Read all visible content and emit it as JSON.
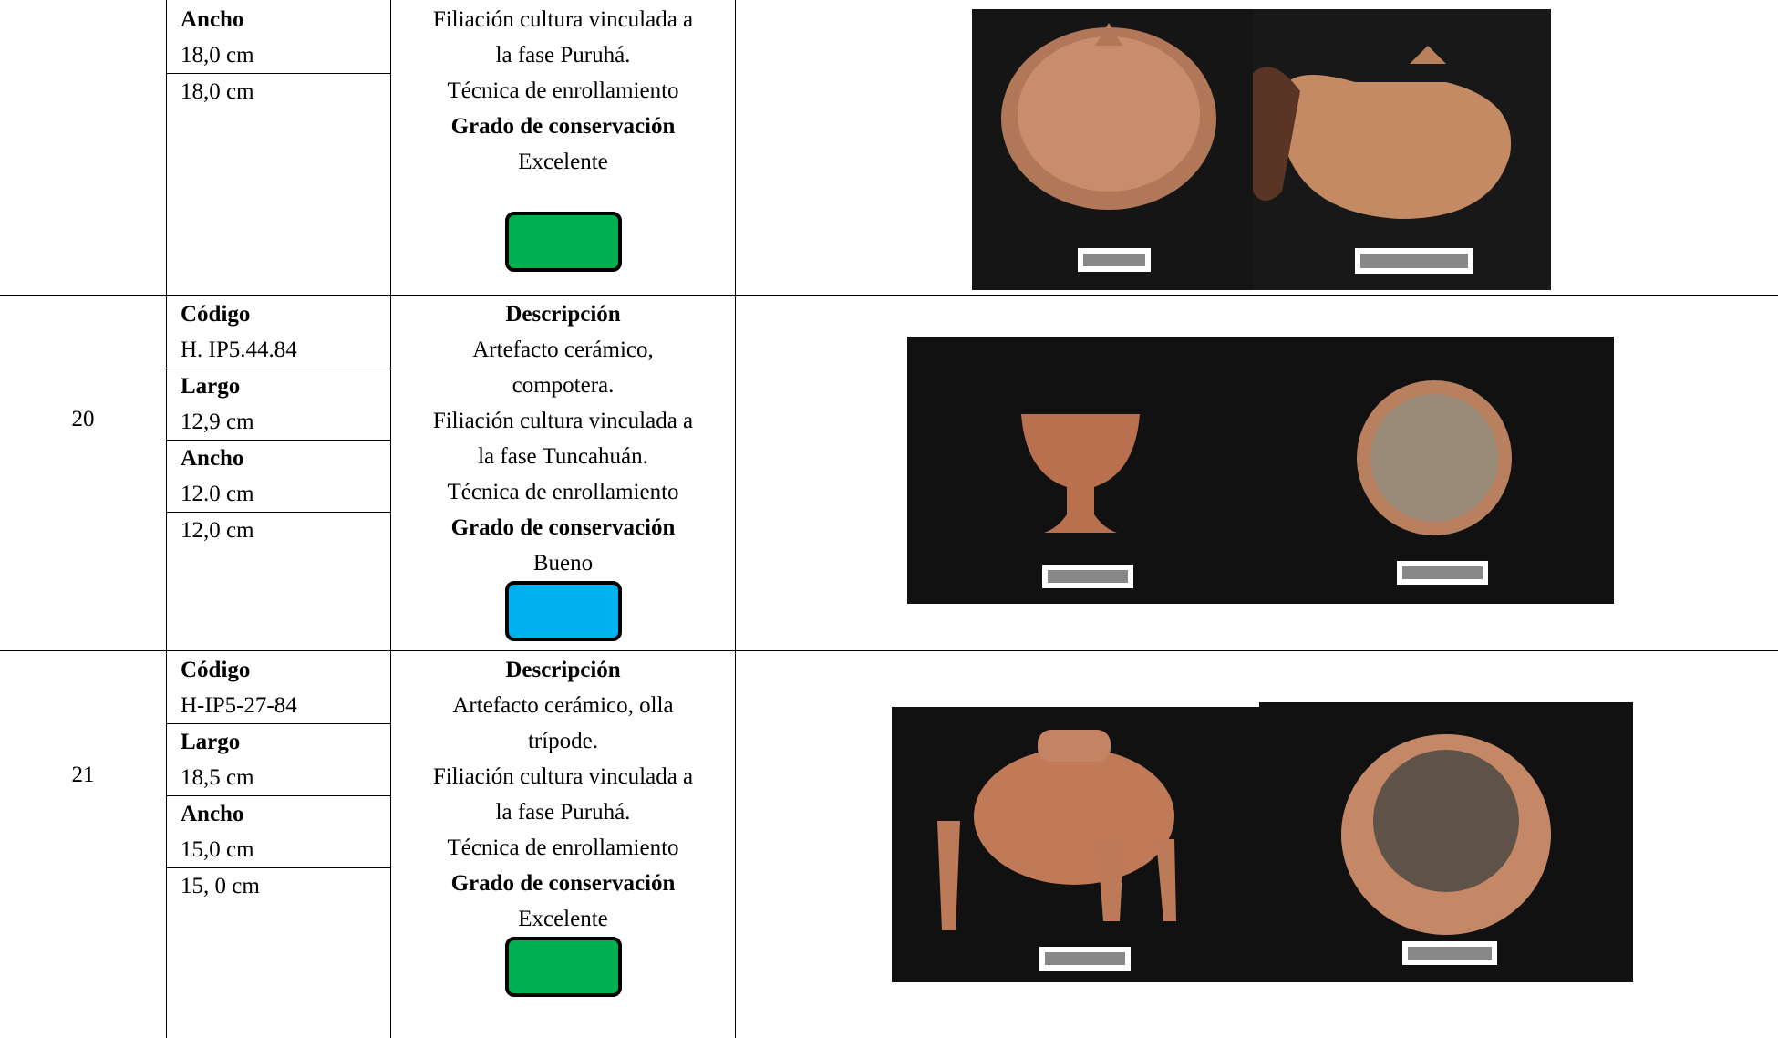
{
  "table": {
    "rows": [
      {
        "fields": [
          {
            "label": "Ancho",
            "value": "18,0 cm"
          },
          {
            "value": "18,0 cm"
          }
        ],
        "description": {
          "lines": [
            "Filiación cultura vinculada a",
            "la fase Puruhá.",
            "Técnica de enrollamiento"
          ]
        },
        "condition_label": "Grado de conservación",
        "condition": "Excelente",
        "condition_color": "#00b050"
      },
      {
        "number": "20",
        "fields": [
          {
            "label": "Código",
            "value": "H. IP5.44.84"
          },
          {
            "label": "Largo",
            "value": "12,9 cm"
          },
          {
            "label": "Ancho",
            "value": "12.0 cm"
          },
          {
            "value": "12,0 cm"
          }
        ],
        "description": {
          "heading": "Descripción",
          "lines": [
            "Artefacto cerámico,",
            "compotera.",
            "Filiación cultura vinculada a",
            "la fase Tuncahuán.",
            "Técnica de enrollamiento"
          ]
        },
        "condition_label": "Grado de conservación",
        "condition": "Bueno",
        "condition_color": "#00b0f0"
      },
      {
        "number": "21",
        "fields": [
          {
            "label": "Código",
            "value": "H-IP5-27-84"
          },
          {
            "label": "Largo",
            "value": "18,5 cm"
          },
          {
            "label": "Ancho",
            "value": "15,0 cm"
          },
          {
            "value": "15, 0 cm"
          }
        ],
        "description": {
          "heading": "Descripción",
          "lines": [
            "Artefacto cerámico, olla",
            "trípode.",
            "Filiación cultura vinculada a",
            "la fase Puruhá.",
            "Técnica de enrollamiento"
          ]
        },
        "condition_label": "Grado de conservación",
        "condition": "Excelente",
        "condition_color": "#00b050"
      }
    ]
  }
}
